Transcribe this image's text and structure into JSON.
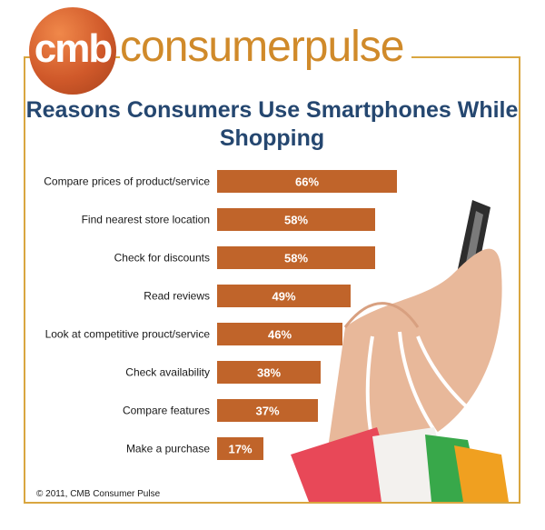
{
  "logo": {
    "circle_text": "cmb",
    "word": "consumerpulse"
  },
  "chart_data": {
    "type": "bar",
    "orientation": "horizontal",
    "title": "Reasons Consumers Use Smartphones While Shopping",
    "categories": [
      "Compare prices of  product/service",
      "Find nearest store location",
      "Check for discounts",
      "Read reviews",
      "Look at competitive prouct/service",
      "Check availability",
      "Compare features",
      "Make a purchase"
    ],
    "values": [
      66,
      58,
      58,
      49,
      46,
      38,
      37,
      17
    ],
    "value_labels": [
      "66%",
      "58%",
      "58%",
      "49%",
      "46%",
      "38%",
      "37%",
      "17%"
    ],
    "bar_color": "#c0642a",
    "xlim": [
      0,
      100
    ],
    "grid": false,
    "legend": "none"
  },
  "footer": {
    "copyright": "© 2011, CMB Consumer Pulse"
  },
  "colors": {
    "frame": "#d9a640",
    "title": "#254770",
    "brand": "#d08a2a",
    "logo": "#d0592a"
  }
}
